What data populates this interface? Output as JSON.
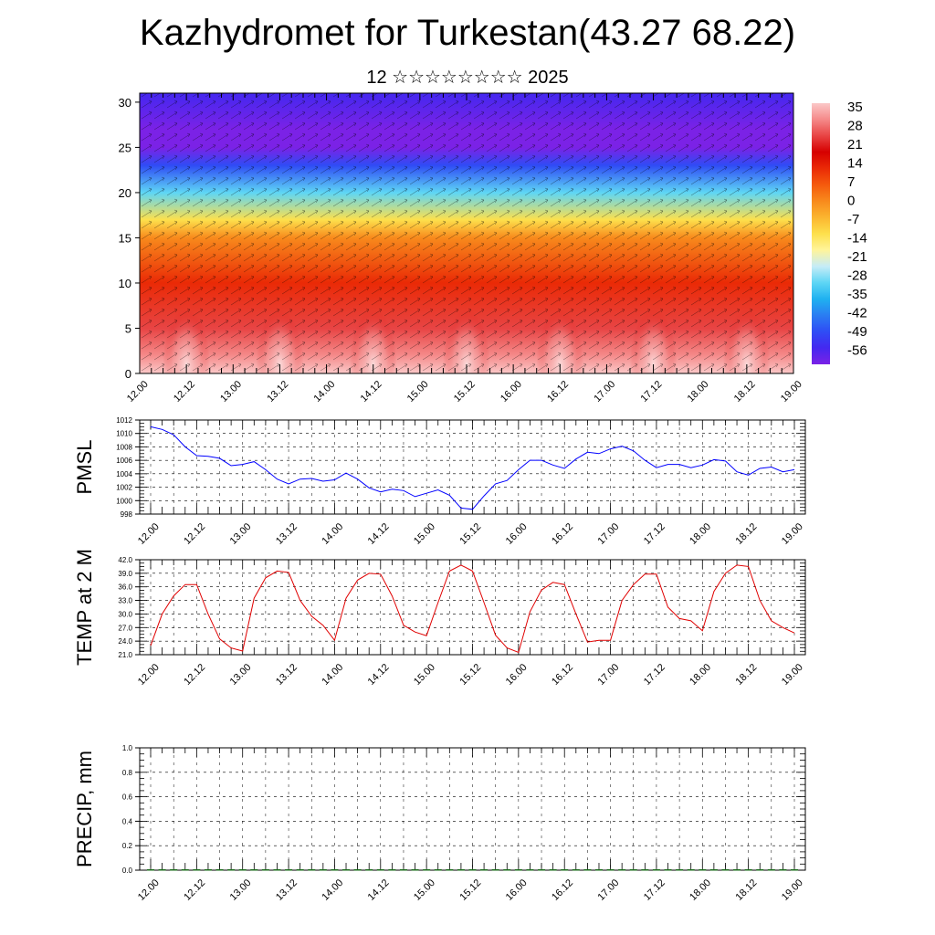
{
  "header": {
    "title": "Kazhydromet for Turkestan(43.27 68.22)",
    "subtitle": "12 ☆☆☆☆☆☆☆☆ 2025"
  },
  "chart_data": [
    {
      "type": "heatmap",
      "x_labels": [
        "12.00",
        "12.12",
        "13.00",
        "13.12",
        "14.00",
        "14.12",
        "15.00",
        "15.12",
        "16.00",
        "16.12",
        "17.00",
        "17.12",
        "18.00",
        "18.12",
        "19.00"
      ],
      "ylim": [
        0,
        31
      ],
      "y_ticks": [
        0,
        5,
        10,
        15,
        20,
        25,
        30
      ],
      "colorbar_labels": [
        "35",
        "28",
        "21",
        "14",
        "7",
        "0",
        "-7",
        "-14",
        "-21",
        "-28",
        "-35",
        "-42",
        "-49",
        "-56"
      ],
      "colorscale": [
        "#7b22e6",
        "#4428f0",
        "#2f4cf5",
        "#2a7df2",
        "#1fb1f0",
        "#5ed6f5",
        "#c6ecf7",
        "#fff49a",
        "#fde04c",
        "#fbb52f",
        "#f88a1c",
        "#f55a0d",
        "#ea2a06",
        "#d60000",
        "#e84444",
        "#f58a8a",
        "#fbc8c8"
      ],
      "vertical_profile_c": [
        [
          0,
          33
        ],
        [
          2,
          28
        ],
        [
          5,
          22
        ],
        [
          10,
          14
        ],
        [
          15,
          2
        ],
        [
          17,
          -10
        ],
        [
          20,
          -28
        ],
        [
          23,
          -45
        ],
        [
          25,
          -58
        ],
        [
          27,
          -54
        ],
        [
          31,
          -50
        ]
      ],
      "surface_warm_peaks": [
        "12.12",
        "13.12",
        "14.12",
        "15.12",
        "16.12",
        "17.12",
        "18.12"
      ]
    },
    {
      "type": "line",
      "ylabel": "PMSL",
      "ylim": [
        998,
        1012
      ],
      "y_ticks": [
        "998",
        "1000",
        "1002",
        "1004",
        "1006",
        "1008",
        "1010",
        "1012"
      ],
      "x_labels": [
        "12.00",
        "12.12",
        "13.00",
        "13.12",
        "14.00",
        "14.12",
        "15.00",
        "15.12",
        "16.00",
        "16.12",
        "17.00",
        "17.12",
        "18.00",
        "18.12",
        "19.00"
      ],
      "series": [
        {
          "color": "#0000ff",
          "values": [
            1011,
            1010.6,
            1009.8,
            1008,
            1006.7,
            1006.6,
            1006.3,
            1005.2,
            1005.4,
            1005.8,
            1004.6,
            1003.2,
            1002.5,
            1003.2,
            1003.3,
            1002.9,
            1003.1,
            1004.1,
            1003.2,
            1001.9,
            1001.3,
            1001.7,
            1001.5,
            1000.6,
            1001.1,
            1001.6,
            1000.8,
            998.9,
            998.7,
            1000.7,
            1002.5,
            1003,
            1004.6,
            1006,
            1006,
            1005.3,
            1004.8,
            1006.2,
            1007.2,
            1007,
            1007.7,
            1008.1,
            1007.4,
            1006,
            1004.9,
            1005.4,
            1005.4,
            1004.9,
            1005.3,
            1006.1,
            1005.9,
            1004.3,
            1003.8,
            1004.8,
            1005,
            1004.3,
            1004.6
          ]
        }
      ]
    },
    {
      "type": "line",
      "ylabel": "TEMP at 2 M",
      "ylim": [
        21,
        42
      ],
      "y_ticks": [
        "21.0",
        "24.0",
        "27.0",
        "30.0",
        "33.0",
        "36.0",
        "39.0",
        "42.0"
      ],
      "x_labels": [
        "12.00",
        "12.12",
        "13.00",
        "13.12",
        "14.00",
        "14.12",
        "15.00",
        "15.12",
        "16.00",
        "16.12",
        "17.00",
        "17.12",
        "18.00",
        "18.12",
        "19.00"
      ],
      "series": [
        {
          "color": "#e00000",
          "values": [
            23,
            30,
            34,
            36.5,
            36.5,
            30,
            24.5,
            22.5,
            21.8,
            33.5,
            38,
            39.5,
            39.2,
            33,
            29.5,
            27.5,
            24.2,
            33.5,
            37.5,
            39,
            38.8,
            34,
            27.5,
            26,
            25.2,
            32.5,
            39.5,
            40.8,
            39.5,
            32.5,
            25.3,
            22.5,
            21.5,
            30.5,
            35.3,
            37,
            36.5,
            30,
            23.8,
            24.2,
            24.2,
            33,
            36.5,
            38.8,
            38.8,
            31.5,
            29,
            28.5,
            26.3,
            35,
            39,
            40.8,
            40.5,
            33,
            28.5,
            27,
            25.8
          ]
        }
      ]
    },
    {
      "type": "bar",
      "ylabel": "PRECIP, mm",
      "ylim": [
        0,
        1
      ],
      "y_ticks": [
        "0.0",
        "0.2",
        "0.4",
        "0.6",
        "0.8",
        "1.0"
      ],
      "x_labels": [
        "12.00",
        "12.12",
        "13.00",
        "13.12",
        "14.00",
        "14.12",
        "15.00",
        "15.12",
        "16.00",
        "16.12",
        "17.00",
        "17.12",
        "18.00",
        "18.12",
        "19.00"
      ],
      "series": [
        {
          "color": "#1a6b1a",
          "values": [
            0,
            0,
            0,
            0,
            0,
            0,
            0,
            0,
            0,
            0,
            0,
            0,
            0,
            0,
            0,
            0,
            0,
            0,
            0,
            0,
            0,
            0,
            0,
            0,
            0,
            0,
            0,
            0,
            0,
            0,
            0,
            0,
            0,
            0,
            0,
            0,
            0,
            0,
            0,
            0,
            0,
            0,
            0,
            0,
            0,
            0,
            0,
            0,
            0,
            0,
            0,
            0,
            0,
            0,
            0,
            0,
            0
          ]
        }
      ]
    }
  ]
}
